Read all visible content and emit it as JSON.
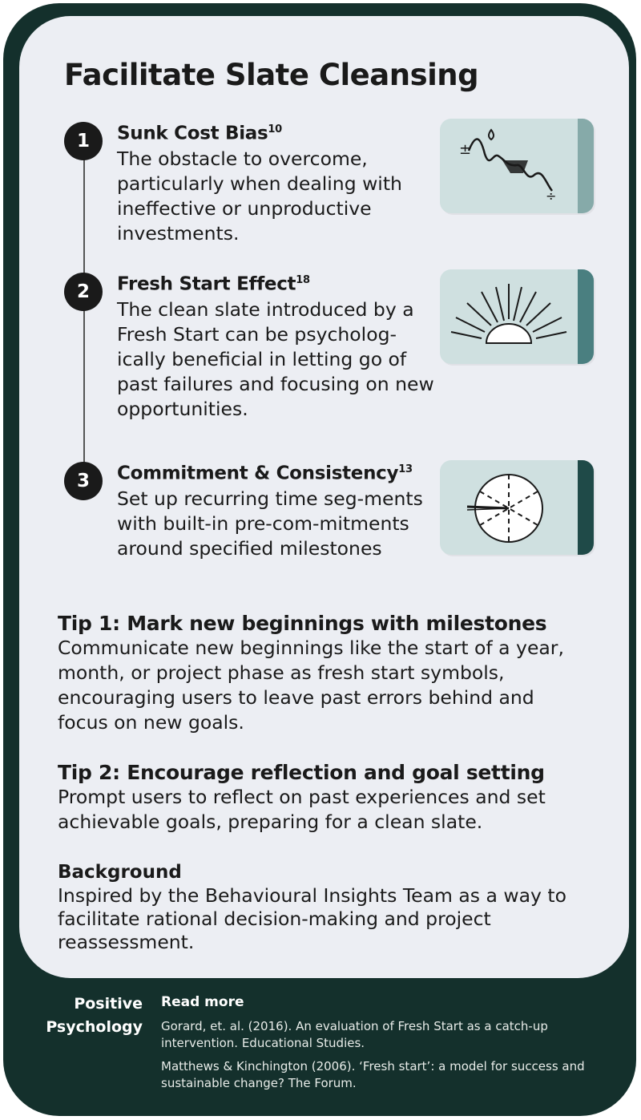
{
  "title": "Facilitate Slate Cleansing",
  "steps": [
    {
      "number": "1",
      "title": "Sunk Cost Bias",
      "sup": "10",
      "text": "The obstacle to overcome, particularly when dealing with ineffective or unproductive investments.",
      "icon": "wave-graph-icon"
    },
    {
      "number": "2",
      "title": "Fresh Start Effect",
      "sup": "18",
      "text": "The clean slate introduced by a Fresh Start can be psycholog-ically beneficial in letting go of past failures and focusing on new opportunities.",
      "icon": "sunrise-icon"
    },
    {
      "number": "3",
      "title": "Commitment & Consistency",
      "sup": "13",
      "text": "Set up recurring time seg-ments with built-in pre-com-mitments around specified milestones",
      "icon": "clock-wheel-icon"
    }
  ],
  "tips": [
    {
      "title": "Tip 1: Mark new beginnings with milestones",
      "text": "Communicate new beginnings like the start of a year, month, or project phase as fresh start symbols, encouraging users to leave past errors behind and focus on new goals."
    },
    {
      "title": "Tip 2: Encourage reflection and goal setting",
      "text": "Prompt users to reflect on past experiences and set achievable goals, preparing for a clean slate."
    }
  ],
  "background": {
    "title": "Background",
    "text": "Inspired by the Behavioural Insights Team as a way to facilitate rational decision-making and project reassessment."
  },
  "footer": {
    "brand_line1": "Positive",
    "brand_line2": "Psychology",
    "read_more": "Read more",
    "references": [
      "Gorard, et. al. (2016). An evaluation of Fresh Start as a catch-up intervention. Educational Studies.",
      "Matthews & Kinchington (2006). ‘Fresh start’: a model for success and sustainable change? The Forum."
    ]
  },
  "colors": {
    "card_bg": "#14302c",
    "panel_bg": "#eceef3",
    "thumb_bg": "#cfe0e0",
    "accent_1": "#86aaa9",
    "accent_2": "#4a7f80",
    "accent_3": "#1f4a48"
  },
  "graph_labels": {
    "plus": "±",
    "minus": "÷"
  }
}
